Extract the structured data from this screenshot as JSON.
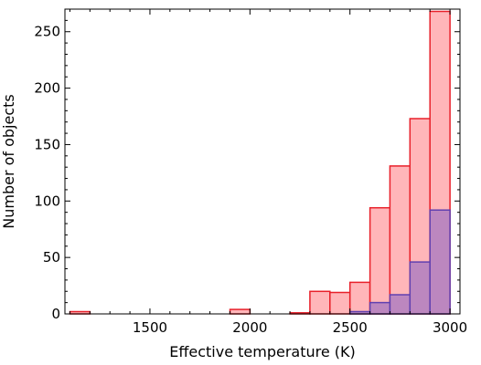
{
  "chart_data": {
    "type": "bar",
    "xlabel": "Effective temperature (K)",
    "ylabel": "Number of objects",
    "xlim": [
      1075,
      3050
    ],
    "ylim": [
      0,
      270
    ],
    "xticks": [
      1500,
      2000,
      2500,
      3000
    ],
    "yticks": [
      0,
      50,
      100,
      150,
      200,
      250
    ],
    "grid": false,
    "series": [
      {
        "color": "#f08080",
        "edge": "#e8202a",
        "fill": "#ffb6b9",
        "bins": [
          {
            "x0": 1100,
            "x1": 1200,
            "value": 2
          },
          {
            "x0": 1900,
            "x1": 2000,
            "value": 4
          },
          {
            "x0": 2200,
            "x1": 2300,
            "value": 1
          },
          {
            "x0": 2300,
            "x1": 2400,
            "value": 20
          },
          {
            "x0": 2400,
            "x1": 2500,
            "value": 19
          },
          {
            "x0": 2500,
            "x1": 2600,
            "value": 28
          },
          {
            "x0": 2600,
            "x1": 2700,
            "value": 94
          },
          {
            "x0": 2700,
            "x1": 2800,
            "value": 131
          },
          {
            "x0": 2800,
            "x1": 2900,
            "value": 173
          },
          {
            "x0": 2900,
            "x1": 3000,
            "value": 268
          }
        ]
      },
      {
        "color": "#8060c0",
        "edge": "#6040b0",
        "fill": "#b07fc0",
        "bins": [
          {
            "x0": 2500,
            "x1": 2600,
            "value": 2
          },
          {
            "x0": 2600,
            "x1": 2700,
            "value": 10
          },
          {
            "x0": 2700,
            "x1": 2800,
            "value": 17
          },
          {
            "x0": 2800,
            "x1": 2900,
            "value": 46
          },
          {
            "x0": 2900,
            "x1": 3000,
            "value": 92
          }
        ]
      }
    ]
  }
}
